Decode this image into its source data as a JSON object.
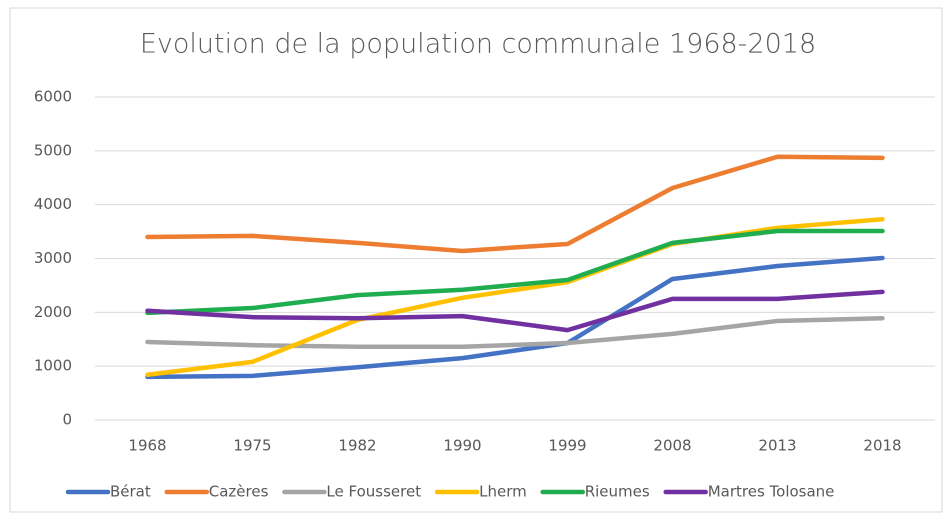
{
  "chart_data": {
    "type": "line",
    "title": "Evolution de la population communale 1968-2018",
    "categories": [
      "1968",
      "1975",
      "1982",
      "1990",
      "1999",
      "2008",
      "2013",
      "2018"
    ],
    "series": [
      {
        "name": "Bérat",
        "color": "#4472c4",
        "values": [
          800,
          820,
          980,
          1150,
          1430,
          2620,
          2860,
          3010
        ]
      },
      {
        "name": "Cazères",
        "color": "#ed7d31",
        "values": [
          3400,
          3420,
          3290,
          3140,
          3270,
          4310,
          4890,
          4870
        ]
      },
      {
        "name": "Le Fousseret",
        "color": "#a5a5a5",
        "values": [
          1450,
          1390,
          1360,
          1360,
          1430,
          1600,
          1840,
          1890
        ]
      },
      {
        "name": "Lherm",
        "color": "#ffc000",
        "values": [
          840,
          1080,
          1860,
          2270,
          2560,
          3270,
          3570,
          3730
        ]
      },
      {
        "name": "Rieumes",
        "color": "#1fad4f",
        "values": [
          1990,
          2080,
          2320,
          2420,
          2600,
          3290,
          3510,
          3510
        ]
      },
      {
        "name": "Martres Tolosane",
        "color": "#7030a0",
        "values": [
          2030,
          1910,
          1890,
          1930,
          1670,
          2250,
          2250,
          2380
        ]
      }
    ],
    "ylim": [
      0,
      6000
    ],
    "yticks": [
      0,
      1000,
      2000,
      3000,
      4000,
      5000,
      6000
    ],
    "grid": true,
    "legend": "bottom"
  }
}
